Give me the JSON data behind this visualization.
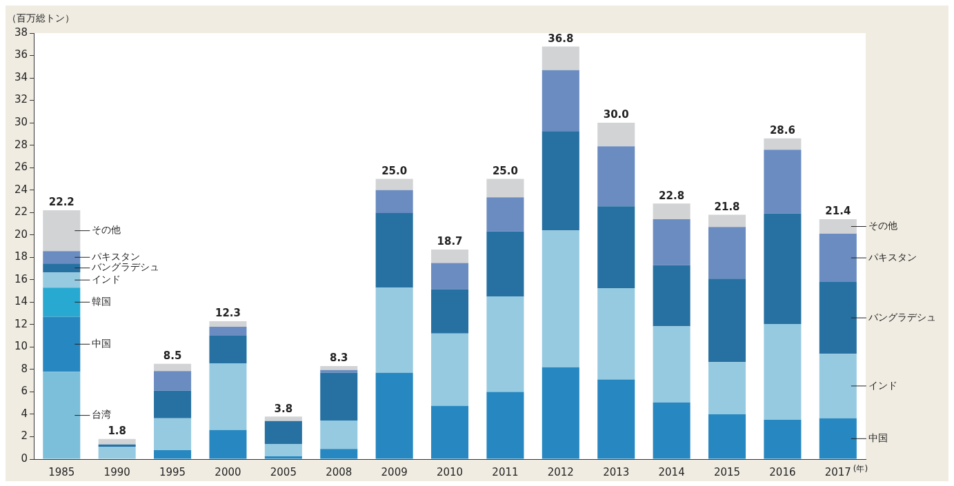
{
  "chart_data": {
    "type": "bar",
    "stacked": true,
    "ylabel": "（百万総トン）",
    "xlabel": "(年)",
    "categories": [
      "1985",
      "1990",
      "1995",
      "2000",
      "2005",
      "2008",
      "2009",
      "2010",
      "2011",
      "2012",
      "2013",
      "2014",
      "2015",
      "2016",
      "2017"
    ],
    "series": [
      {
        "name": "台湾",
        "color": "#7cbfda",
        "values": [
          7.8,
          null,
          null,
          null,
          null,
          null,
          null,
          null,
          null,
          null,
          null,
          null,
          null,
          null,
          null
        ]
      },
      {
        "name": "中国",
        "color": "#2787c0",
        "values": [
          4.9,
          0,
          0.8,
          2.6,
          0.25,
          0.9,
          7.7,
          4.75,
          6.0,
          8.2,
          7.1,
          5.05,
          4.0,
          3.5,
          3.65
        ]
      },
      {
        "name": "韓国",
        "color": "#28a9d1",
        "values": [
          2.6,
          null,
          null,
          null,
          null,
          null,
          null,
          null,
          null,
          null,
          null,
          null,
          null,
          null,
          null
        ]
      },
      {
        "name": "インド",
        "color": "#96cae1",
        "values": [
          1.35,
          1.1,
          2.85,
          5.95,
          1.1,
          2.55,
          7.6,
          6.45,
          8.5,
          12.2,
          8.15,
          6.8,
          4.65,
          8.55,
          5.75
        ]
      },
      {
        "name": "バングラデシュ",
        "color": "#2671a2",
        "values": [
          0.8,
          0.2,
          2.45,
          2.45,
          2.05,
          4.25,
          6.65,
          3.95,
          5.8,
          8.85,
          7.3,
          5.45,
          7.45,
          9.85,
          6.4
        ]
      },
      {
        "name": "パキスタン",
        "color": "#6b8cc1",
        "values": [
          1.1,
          0,
          1.75,
          0.8,
          0,
          0.25,
          2.05,
          2.35,
          3.05,
          5.45,
          5.35,
          4.1,
          4.6,
          5.7,
          4.3
        ]
      },
      {
        "name": "その他",
        "color": "#d2d3d5",
        "values": [
          3.65,
          0.5,
          0.65,
          0.5,
          0.4,
          0.35,
          1.0,
          1.2,
          1.65,
          2.1,
          2.1,
          1.4,
          1.1,
          1.0,
          1.3
        ]
      }
    ],
    "totals": [
      "22.2",
      "1.8",
      "8.5",
      "12.3",
      "3.8",
      "8.3",
      "25.0",
      "18.7",
      "25.0",
      "36.8",
      "30.0",
      "22.8",
      "21.8",
      "28.6",
      "21.4"
    ],
    "ylim": [
      0,
      38
    ],
    "yticks": [
      0,
      2,
      4,
      6,
      8,
      10,
      12,
      14,
      16,
      18,
      20,
      22,
      24,
      26,
      28,
      30,
      32,
      34,
      36,
      38
    ],
    "grid": false,
    "legend": false
  }
}
